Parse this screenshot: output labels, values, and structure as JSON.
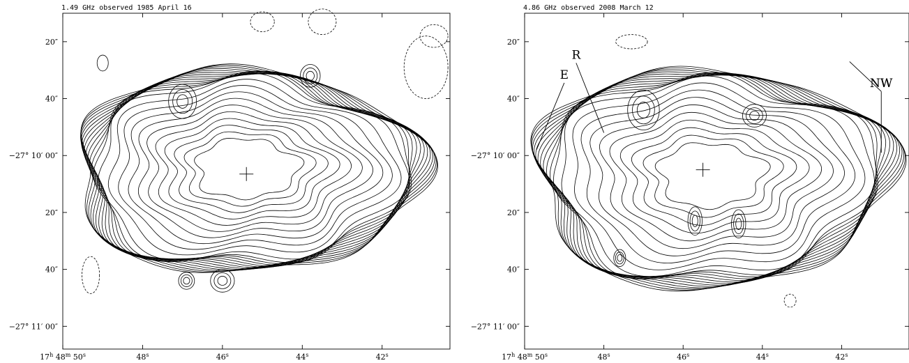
{
  "chart_data": [
    {
      "type": "contour",
      "title": "1.49 GHz observed 1985 April 16",
      "x_ticks": [
        {
          "ra_s": 50,
          "parts": [
            "17",
            "h",
            " 48",
            "m",
            " 50",
            "s"
          ]
        },
        {
          "ra_s": 48,
          "parts": [
            "",
            "",
            "",
            "",
            "48",
            "s"
          ]
        },
        {
          "ra_s": 46,
          "parts": [
            "",
            "",
            "",
            "",
            "46",
            "s"
          ]
        },
        {
          "ra_s": 44,
          "parts": [
            "",
            "",
            "",
            "",
            "44",
            "s"
          ]
        },
        {
          "ra_s": 42,
          "parts": [
            "",
            "",
            "",
            "",
            "42",
            "s"
          ]
        }
      ],
      "y_ticks": [
        {
          "dec_arcsec": -10,
          "label": "20″"
        },
        {
          "dec_arcsec": -30,
          "label": "40″"
        },
        {
          "dec_arcsec": -50,
          "label": "−27° 10′ 00″"
        },
        {
          "dec_arcsec": -70,
          "label": "20″"
        },
        {
          "dec_arcsec": -90,
          "label": "40″"
        },
        {
          "dec_arcsec": -110,
          "label": "−27° 11′ 00″"
        }
      ],
      "x_range_ra_s": [
        50.0,
        40.3
      ],
      "y_range_dec_arcsec": [
        0,
        -118
      ],
      "center_marker": {
        "ra_s": 45.4,
        "dec_arcsec": -56.5
      },
      "remnant_shape": {
        "ra_center_s": 45.4,
        "dec_center_arcsec": -54.3,
        "ra_halfwidth_s": 4.35,
        "dec_halfwidth_arcsec": 37.3
      },
      "contour_levels": 24,
      "negative_contours": [
        {
          "ra_s": 43.5,
          "dec_arcsec": -3,
          "rx": 0.35,
          "ry": 4.5
        },
        {
          "ra_s": 45.0,
          "dec_arcsec": -3,
          "rx": 0.3,
          "ry": 3.5
        },
        {
          "ra_s": 40.9,
          "dec_arcsec": -19,
          "rx": 0.55,
          "ry": 11
        },
        {
          "ra_s": 40.7,
          "dec_arcsec": -8,
          "rx": 0.35,
          "ry": 4
        },
        {
          "ra_s": 49.3,
          "dec_arcsec": -92,
          "rx": 0.22,
          "ry": 6.5
        }
      ],
      "positive_isolated": [
        {
          "ra_s": 49.0,
          "dec_arcsec": -17.5,
          "rx": 0.14,
          "ry": 2.8
        }
      ],
      "annotations": []
    },
    {
      "type": "contour",
      "title": "4.86 GHz observed 2008 March 12",
      "x_ticks": [
        {
          "ra_s": 50,
          "parts": [
            "17",
            "h",
            " 48",
            "m",
            " 50",
            "s"
          ]
        },
        {
          "ra_s": 48,
          "parts": [
            "",
            "",
            "",
            "",
            "48",
            "s"
          ]
        },
        {
          "ra_s": 46,
          "parts": [
            "",
            "",
            "",
            "",
            "46",
            "s"
          ]
        },
        {
          "ra_s": 44,
          "parts": [
            "",
            "",
            "",
            "",
            "44",
            "s"
          ]
        },
        {
          "ra_s": 42,
          "parts": [
            "",
            "",
            "",
            "",
            "42",
            "s"
          ]
        }
      ],
      "y_ticks": [
        {
          "dec_arcsec": -10,
          "label": "20″"
        },
        {
          "dec_arcsec": -30,
          "label": "40″"
        },
        {
          "dec_arcsec": -50,
          "label": "−27° 10′ 00″"
        },
        {
          "dec_arcsec": -70,
          "label": "20″"
        },
        {
          "dec_arcsec": -90,
          "label": "40″"
        },
        {
          "dec_arcsec": -110,
          "label": "−27° 11′ 00″"
        }
      ],
      "x_range_ra_s": [
        50.0,
        40.3
      ],
      "y_range_dec_arcsec": [
        0,
        -118
      ],
      "center_marker": {
        "ra_s": 45.5,
        "dec_arcsec": -55.0
      },
      "remnant_shape": {
        "ra_center_s": 45.3,
        "dec_center_arcsec": -56.5,
        "ra_halfwidth_s": 4.5,
        "dec_halfwidth_arcsec": 40.0
      },
      "contour_levels": 22,
      "negative_contours": [
        {
          "ra_s": 47.3,
          "dec_arcsec": -10,
          "rx": 0.4,
          "ry": 2.5
        },
        {
          "ra_s": 43.3,
          "dec_arcsec": -101,
          "rx": 0.15,
          "ry": 2.3
        }
      ],
      "positive_isolated": [],
      "annotations": [
        {
          "label": "E",
          "ra_s": 49.0,
          "dec_arcsec": -23,
          "to_ra_s": 49.7,
          "to_dec_arcsec": -48
        },
        {
          "label": "R",
          "ra_s": 48.7,
          "dec_arcsec": -16,
          "to_ra_s": 48.0,
          "to_dec_arcsec": -42
        },
        {
          "label": "NW",
          "ra_s": 41.0,
          "dec_arcsec": -26,
          "to_ra_s": 41.8,
          "to_dec_arcsec": -17
        },
        {
          "label": "NW",
          "ra_s": 41.0,
          "dec_arcsec": -26,
          "to_ra_s": 41.0,
          "to_dec_arcsec": -49
        }
      ]
    }
  ]
}
